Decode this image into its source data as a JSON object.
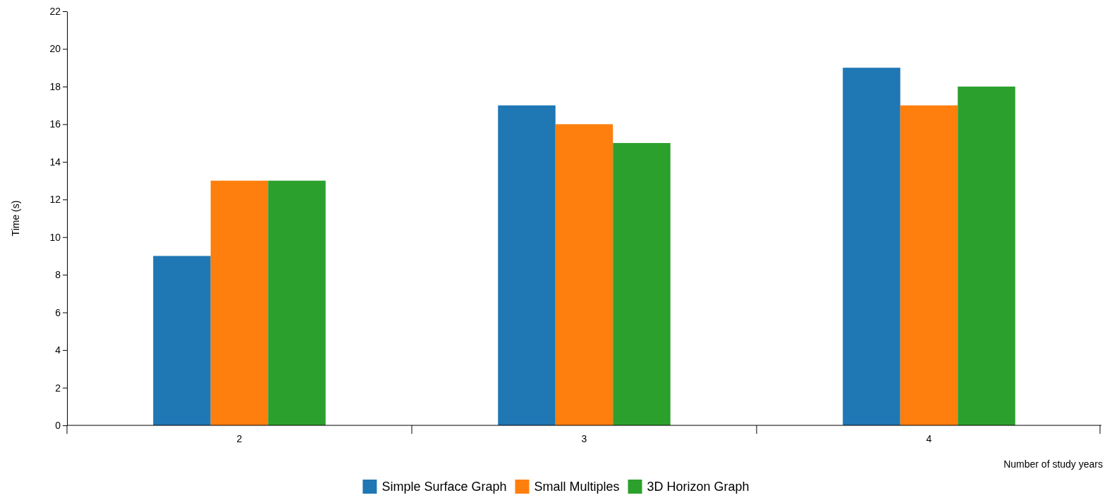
{
  "chart_data": {
    "type": "bar",
    "xlabel": "Number of study years",
    "ylabel": "Time (s)",
    "categories": [
      "2",
      "3",
      "4"
    ],
    "series": [
      {
        "name": "Simple Surface Graph",
        "color": "#1f77b4",
        "values": [
          9,
          17,
          19
        ]
      },
      {
        "name": "Small Multiples",
        "color": "#ff7f0e",
        "values": [
          13,
          16,
          17
        ]
      },
      {
        "name": "3D Horizon Graph",
        "color": "#2ca02c",
        "values": [
          13,
          15,
          18
        ]
      }
    ],
    "ylim": [
      0,
      22
    ],
    "yticks": [
      0,
      2,
      4,
      6,
      8,
      10,
      12,
      14,
      16,
      18,
      20,
      22
    ],
    "grid": false,
    "legend": "bottom"
  }
}
